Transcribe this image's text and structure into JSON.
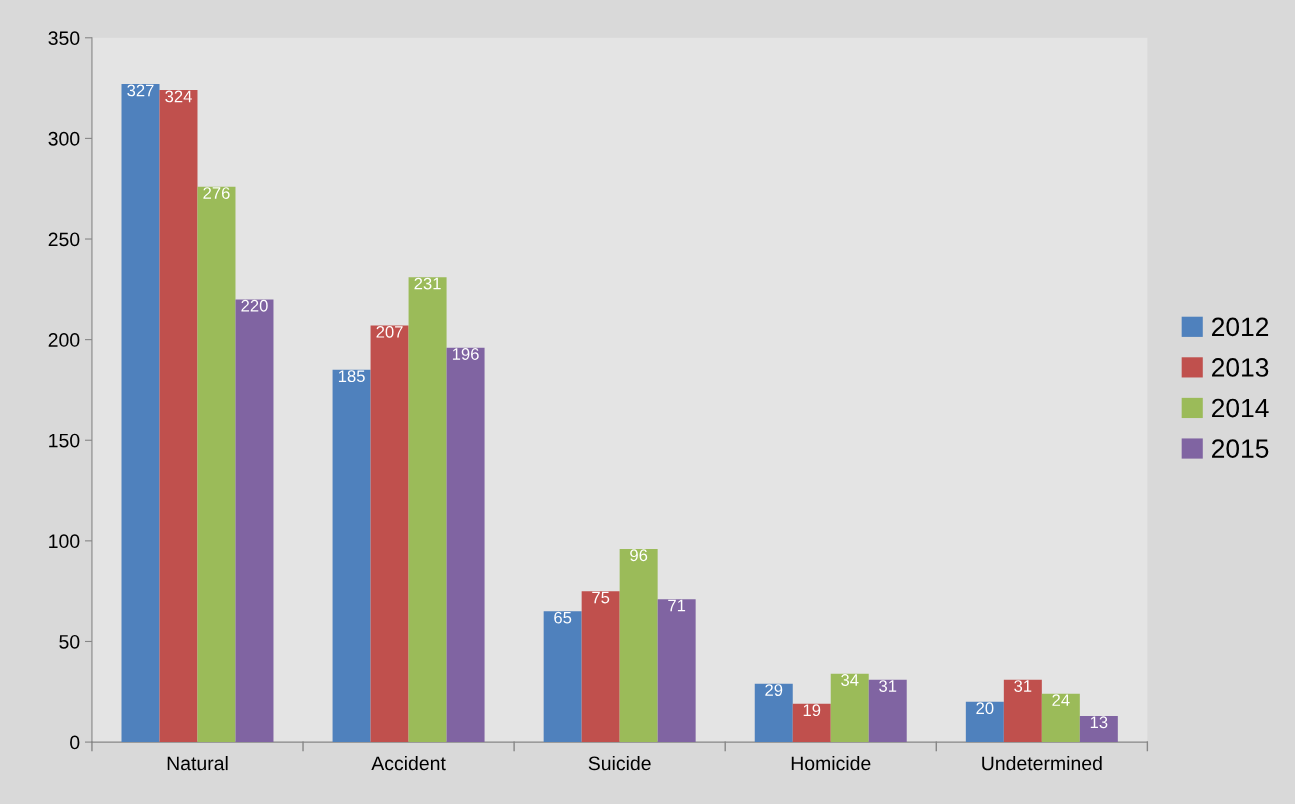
{
  "chart_data": {
    "type": "bar",
    "categories": [
      "Natural",
      "Accident",
      "Suicide",
      "Homicide",
      "Undetermined"
    ],
    "series": [
      {
        "name": "2012",
        "color": "#4f81bd",
        "values": [
          327,
          185,
          65,
          29,
          20
        ]
      },
      {
        "name": "2013",
        "color": "#c0504d",
        "values": [
          324,
          207,
          75,
          19,
          31
        ]
      },
      {
        "name": "2014",
        "color": "#9bbb59",
        "values": [
          276,
          231,
          96,
          34,
          24
        ]
      },
      {
        "name": "2015",
        "color": "#8064a2",
        "values": [
          220,
          196,
          71,
          31,
          13
        ]
      }
    ],
    "ylim": [
      0,
      350
    ],
    "yticks": [
      0,
      50,
      100,
      150,
      200,
      250,
      300,
      350
    ],
    "grid": false,
    "legend": "right",
    "data_labels": true
  }
}
